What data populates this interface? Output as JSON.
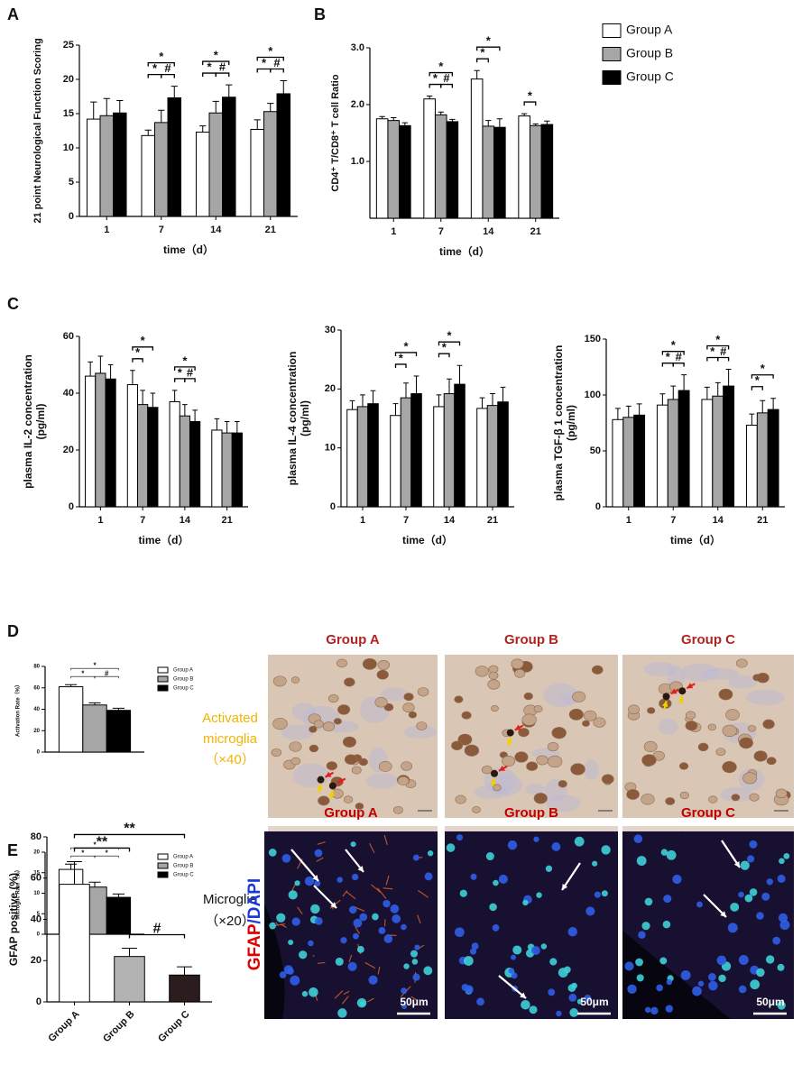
{
  "panel_labels": [
    "A",
    "B",
    "C",
    "D",
    "E"
  ],
  "chart_data": [
    {
      "type": "bar",
      "ylabel": "21 point Neurological Function Scoring",
      "xlabel": "time（d）",
      "categories": [
        "1",
        "7",
        "14",
        "21"
      ],
      "series": [
        {
          "name": "Group A",
          "color": "#ffffff",
          "values": [
            14.2,
            11.8,
            12.3,
            12.7
          ],
          "errors": [
            2.5,
            0.8,
            0.9,
            1.4
          ]
        },
        {
          "name": "Group B",
          "color": "#a6a6a6",
          "values": [
            14.7,
            13.7,
            15.1,
            15.3
          ],
          "errors": [
            2.5,
            1.8,
            1.7,
            1.2
          ]
        },
        {
          "name": "Group C",
          "color": "#000000",
          "values": [
            15.1,
            17.3,
            17.4,
            17.9
          ],
          "errors": [
            1.8,
            1.7,
            1.8,
            1.9
          ]
        }
      ],
      "ylim": [
        0,
        25
      ],
      "yticks": [
        0,
        5,
        10,
        15,
        20,
        25
      ],
      "legend": false,
      "brackets": [
        {
          "label": "*",
          "category": 1,
          "from": 0,
          "to": 2
        },
        {
          "label": "*",
          "category": 1,
          "from": 0,
          "to": 1
        },
        {
          "label": "#",
          "category": 1,
          "from": 1,
          "to": 2
        },
        {
          "label": "*",
          "category": 2,
          "from": 0,
          "to": 2
        },
        {
          "label": "*",
          "category": 2,
          "from": 0,
          "to": 1
        },
        {
          "label": "#",
          "category": 2,
          "from": 1,
          "to": 2
        },
        {
          "label": "*",
          "category": 3,
          "from": 0,
          "to": 2
        },
        {
          "label": "*",
          "category": 3,
          "from": 0,
          "to": 1
        },
        {
          "label": "#",
          "category": 3,
          "from": 1,
          "to": 2
        }
      ]
    },
    {
      "type": "bar",
      "ylabel": "CD4⁺ T/CD8⁺ T cell Ratio",
      "xlabel": "time（d）",
      "categories": [
        "1",
        "7",
        "14",
        "21"
      ],
      "series": [
        {
          "name": "Group A",
          "color": "#ffffff",
          "values": [
            1.75,
            2.1,
            2.45,
            1.8
          ],
          "errors": [
            0.04,
            0.05,
            0.15,
            0.04
          ]
        },
        {
          "name": "Group B",
          "color": "#a6a6a6",
          "values": [
            1.72,
            1.82,
            1.62,
            1.63
          ],
          "errors": [
            0.05,
            0.05,
            0.1,
            0.03
          ]
        },
        {
          "name": "Group C",
          "color": "#000000",
          "values": [
            1.63,
            1.7,
            1.6,
            1.65
          ],
          "errors": [
            0.05,
            0.04,
            0.15,
            0.06
          ]
        }
      ],
      "ylim": [
        0,
        3
      ],
      "yticks": [
        {
          "value": 1,
          "label": "1.0"
        },
        {
          "value": 2,
          "label": "2.0"
        },
        {
          "value": 3,
          "label": "3.0"
        }
      ],
      "legend": true,
      "brackets": [
        {
          "label": "*",
          "category": 1,
          "from": 0,
          "to": 2
        },
        {
          "label": "*",
          "category": 1,
          "from": 0,
          "to": 1
        },
        {
          "label": "#",
          "category": 1,
          "from": 1,
          "to": 2
        },
        {
          "label": "*",
          "category": 2,
          "from": 0,
          "to": 2
        },
        {
          "label": "*",
          "category": 2,
          "from": 0,
          "to": 1
        },
        {
          "label": "*",
          "category": 3,
          "from": 0,
          "to": 1
        }
      ]
    },
    {
      "type": "bar",
      "ylabel": [
        "plasma IL-2 concentration",
        "(pg/ml)"
      ],
      "xlabel": "time（d）",
      "categories": [
        "1",
        "7",
        "14",
        "21"
      ],
      "series": [
        {
          "name": "Group A",
          "color": "#ffffff",
          "values": [
            46,
            43,
            37,
            27
          ],
          "errors": [
            5,
            5,
            4,
            4
          ]
        },
        {
          "name": "Group B",
          "color": "#a6a6a6",
          "values": [
            47,
            36,
            32,
            26
          ],
          "errors": [
            6,
            5,
            4,
            4
          ]
        },
        {
          "name": "Group C",
          "color": "#000000",
          "values": [
            45,
            35,
            30,
            26
          ],
          "errors": [
            5,
            5,
            4,
            4
          ]
        }
      ],
      "ylim": [
        0,
        60
      ],
      "yticks": [
        0,
        20,
        40,
        60
      ],
      "legend": false,
      "brackets": [
        {
          "label": "*",
          "category": 1,
          "from": 0,
          "to": 2
        },
        {
          "label": "*",
          "category": 1,
          "from": 0,
          "to": 1
        },
        {
          "label": "*",
          "category": 2,
          "from": 0,
          "to": 2
        },
        {
          "label": "*",
          "category": 2,
          "from": 0,
          "to": 1
        },
        {
          "label": "#",
          "category": 2,
          "from": 1,
          "to": 2
        }
      ]
    },
    {
      "type": "bar",
      "ylabel": [
        "plasma IL-4 concentration",
        "(pg/ml)"
      ],
      "xlabel": "time（d）",
      "categories": [
        "1",
        "7",
        "14",
        "21"
      ],
      "series": [
        {
          "name": "Group A",
          "color": "#ffffff",
          "values": [
            16.5,
            15.5,
            17,
            16.7
          ],
          "errors": [
            1.5,
            2,
            2,
            1.8
          ]
        },
        {
          "name": "Group B",
          "color": "#a6a6a6",
          "values": [
            17,
            18.5,
            19.2,
            17.2
          ],
          "errors": [
            2,
            2.5,
            2.5,
            2
          ]
        },
        {
          "name": "Group C",
          "color": "#000000",
          "values": [
            17.5,
            19.2,
            20.8,
            17.8
          ],
          "errors": [
            2.2,
            3,
            3.2,
            2.5
          ]
        }
      ],
      "ylim": [
        0,
        30
      ],
      "yticks": [
        0,
        10,
        20,
        30
      ],
      "legend": false,
      "brackets": [
        {
          "label": "*",
          "category": 1,
          "from": 0,
          "to": 2
        },
        {
          "label": "*",
          "category": 1,
          "from": 0,
          "to": 1
        },
        {
          "label": "*",
          "category": 2,
          "from": 0,
          "to": 2
        },
        {
          "label": "*",
          "category": 2,
          "from": 0,
          "to": 1
        }
      ]
    },
    {
      "type": "bar",
      "ylabel": [
        "plasma TGF-β 1 concentration",
        "(pg/ml)"
      ],
      "xlabel": "time（d）",
      "categories": [
        "1",
        "7",
        "14",
        "21"
      ],
      "series": [
        {
          "name": "Group A",
          "color": "#ffffff",
          "values": [
            78,
            91,
            96,
            73
          ],
          "errors": [
            10,
            10,
            11,
            10
          ]
        },
        {
          "name": "Group B",
          "color": "#a6a6a6",
          "values": [
            80,
            96,
            99,
            84
          ],
          "errors": [
            10,
            12,
            12,
            11
          ]
        },
        {
          "name": "Group C",
          "color": "#000000",
          "values": [
            82,
            104,
            108,
            87
          ],
          "errors": [
            10,
            14,
            15,
            10
          ]
        }
      ],
      "ylim": [
        0,
        150
      ],
      "yticks": [
        0,
        50,
        100,
        150
      ],
      "legend": false,
      "brackets": [
        {
          "label": "*",
          "category": 1,
          "from": 0,
          "to": 2
        },
        {
          "label": "*",
          "category": 1,
          "from": 0,
          "to": 1
        },
        {
          "label": "#",
          "category": 1,
          "from": 1,
          "to": 2
        },
        {
          "label": "*",
          "category": 2,
          "from": 0,
          "to": 2
        },
        {
          "label": "*",
          "category": 2,
          "from": 0,
          "to": 1
        },
        {
          "label": "#",
          "category": 2,
          "from": 1,
          "to": 2
        },
        {
          "label": "*",
          "category": 3,
          "from": 0,
          "to": 2
        },
        {
          "label": "*",
          "category": 3,
          "from": 0,
          "to": 1
        }
      ]
    },
    {
      "type": "bar",
      "ylabel": "Activation Rate（%）",
      "categories": [
        null
      ],
      "series": [
        {
          "name": "Group A",
          "color": "#ffffff",
          "values": [
            61
          ],
          "errors": [
            2
          ]
        },
        {
          "name": "Group B",
          "color": "#a6a6a6",
          "values": [
            44
          ],
          "errors": [
            2
          ]
        },
        {
          "name": "Group C",
          "color": "#000000",
          "values": [
            39
          ],
          "errors": [
            2
          ]
        }
      ],
      "ylim": [
        0,
        80
      ],
      "yticks": [
        0,
        20,
        40,
        60,
        80
      ],
      "legend": true,
      "brackets": [
        {
          "label": "*",
          "category": 0,
          "from": 0,
          "to": 2
        },
        {
          "label": "*",
          "category": 0,
          "from": 0,
          "to": 1
        },
        {
          "label": "#",
          "category": 0,
          "from": 1,
          "to": 2
        }
      ]
    },
    {
      "type": "bar",
      "ylabel": "Microglic Rate（%）",
      "categories": [
        null
      ],
      "series": [
        {
          "name": "Group A",
          "color": "#ffffff",
          "values": [
            15.8
          ],
          "errors": [
            1.3
          ]
        },
        {
          "name": "Group B",
          "color": "#a6a6a6",
          "values": [
            11.5
          ],
          "errors": [
            1.2
          ]
        },
        {
          "name": "Group C",
          "color": "#000000",
          "values": [
            9
          ],
          "errors": [
            0.8
          ]
        }
      ],
      "ylim": [
        0,
        20
      ],
      "yticks": [
        0,
        5,
        10,
        15,
        20
      ],
      "legend": true,
      "brackets": [
        {
          "label": "*",
          "category": 0,
          "from": 0,
          "to": 2
        },
        {
          "label": "*",
          "category": 0,
          "from": 0,
          "to": 1
        },
        {
          "label": "*",
          "category": 0,
          "from": 1,
          "to": 2
        }
      ]
    },
    {
      "type": "bar",
      "ylabel": "GFAP positive (%)",
      "categories": [
        "Group A",
        "Group B",
        "Group C"
      ],
      "values": [
        57,
        22,
        13
      ],
      "errors": [
        11,
        4,
        4
      ],
      "colors": [
        "#ffffff",
        "#b3b3b3",
        "#2b1d1d"
      ],
      "ylim": [
        0,
        80
      ],
      "yticks": [
        0,
        20,
        40,
        60,
        80
      ],
      "legend": false,
      "brackets": [
        {
          "label": "**",
          "from": 0,
          "to": 2
        },
        {
          "label": "**",
          "from": 0,
          "to": 1
        },
        {
          "label": "#",
          "from": 1,
          "to": 2
        }
      ]
    }
  ],
  "microscopy": {
    "columns": [
      "Group A",
      "Group B",
      "Group C"
    ],
    "rows": [
      [
        "Activated",
        "microglia",
        "（×40）"
      ],
      [
        "Microglia",
        "（×20）"
      ]
    ]
  },
  "fluorescence": {
    "stain": [
      "GFAP",
      "/",
      "DAPI"
    ],
    "columns": [
      "Group A",
      "Group B",
      "Group C"
    ],
    "scale_bars": [
      "50μm",
      "50μm",
      "50μm"
    ]
  }
}
